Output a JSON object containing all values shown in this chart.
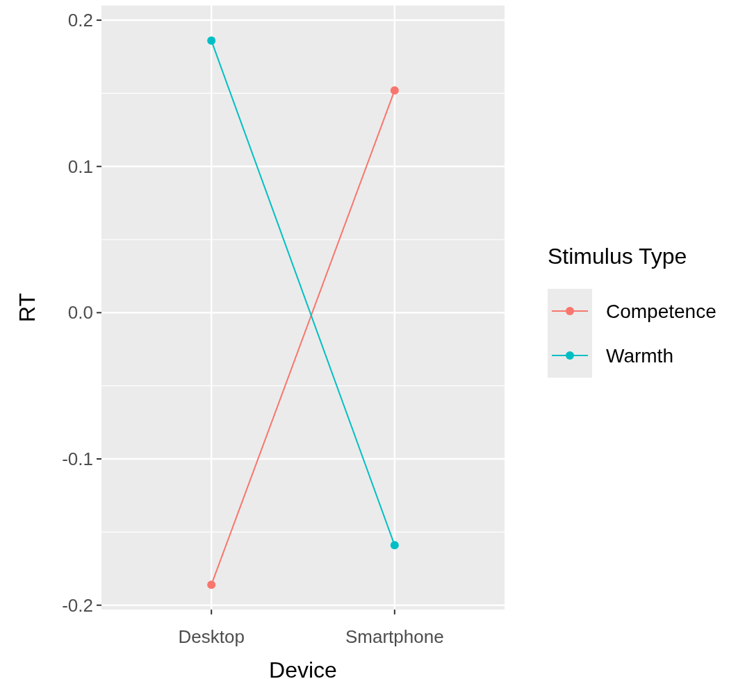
{
  "chart_data": {
    "type": "line",
    "xlabel": "Device",
    "ylabel": "RT",
    "legend_title": "Stimulus Type",
    "categories": [
      "Desktop",
      "Smartphone"
    ],
    "series": [
      {
        "name": "Competence",
        "color": "#f8766d",
        "values": [
          -0.186,
          0.152
        ]
      },
      {
        "name": "Warmth",
        "color": "#00bfc4",
        "values": [
          0.186,
          -0.159
        ]
      }
    ],
    "ylim": [
      -0.203,
      0.21
    ],
    "yticks": [
      -0.2,
      -0.1,
      {
        "value": 0,
        "label": "0.0"
      },
      0.1,
      0.2
    ],
    "grid": true,
    "legend": "right",
    "marker": "circle",
    "line_style": "solid"
  }
}
